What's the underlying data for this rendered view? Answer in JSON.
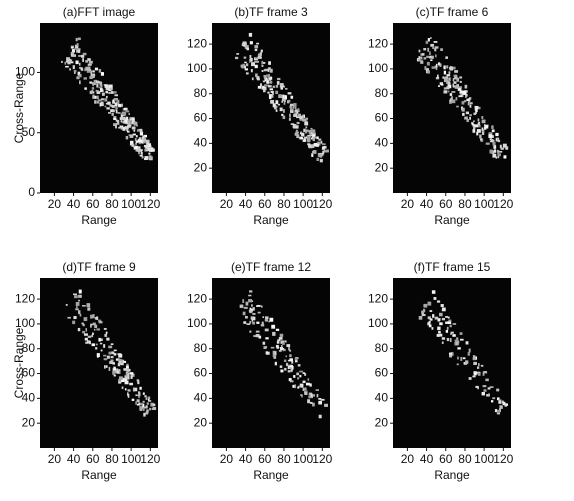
{
  "chart_data": [
    {
      "type": "image",
      "title": "(a)FFT image",
      "x_label": "Range",
      "y_label": "Cross-Range",
      "xlim": [
        5,
        128
      ],
      "ylim": [
        0,
        141
      ],
      "xticks": [
        20,
        40,
        60,
        80,
        100,
        120
      ],
      "yticks": [
        0,
        50,
        100
      ]
    },
    {
      "type": "image",
      "title": "(b)TF frame 3",
      "x_label": "Range",
      "xlim": [
        5,
        128
      ],
      "ylim": [
        0,
        137
      ],
      "xticks": [
        20,
        40,
        60,
        80,
        100,
        120
      ],
      "yticks": [
        20,
        40,
        60,
        80,
        100,
        120
      ]
    },
    {
      "type": "image",
      "title": "(c)TF frame 6",
      "x_label": "Range",
      "xlim": [
        5,
        128
      ],
      "ylim": [
        0,
        137
      ],
      "xticks": [
        20,
        40,
        60,
        80,
        100,
        120
      ],
      "yticks": [
        20,
        40,
        60,
        80,
        100,
        120
      ]
    },
    {
      "type": "image",
      "title": "(d)TF frame 9",
      "x_label": "Range",
      "y_label": "Cross-Range",
      "xlim": [
        5,
        128
      ],
      "ylim": [
        0,
        137
      ],
      "xticks": [
        20,
        40,
        60,
        80,
        100,
        120
      ],
      "yticks": [
        20,
        40,
        60,
        80,
        100,
        120
      ]
    },
    {
      "type": "image",
      "title": "(e)TF frame 12",
      "x_label": "Range",
      "xlim": [
        5,
        128
      ],
      "ylim": [
        0,
        137
      ],
      "xticks": [
        20,
        40,
        60,
        80,
        100,
        120
      ],
      "yticks": [
        20,
        40,
        60,
        80,
        100,
        120
      ]
    },
    {
      "type": "image",
      "title": "(f)TF frame 15",
      "x_label": "Range",
      "xlim": [
        5,
        128
      ],
      "ylim": [
        0,
        137
      ],
      "xticks": [
        20,
        40,
        60,
        80,
        100,
        120
      ],
      "yticks": [
        20,
        40,
        60,
        80,
        100,
        120
      ]
    }
  ]
}
